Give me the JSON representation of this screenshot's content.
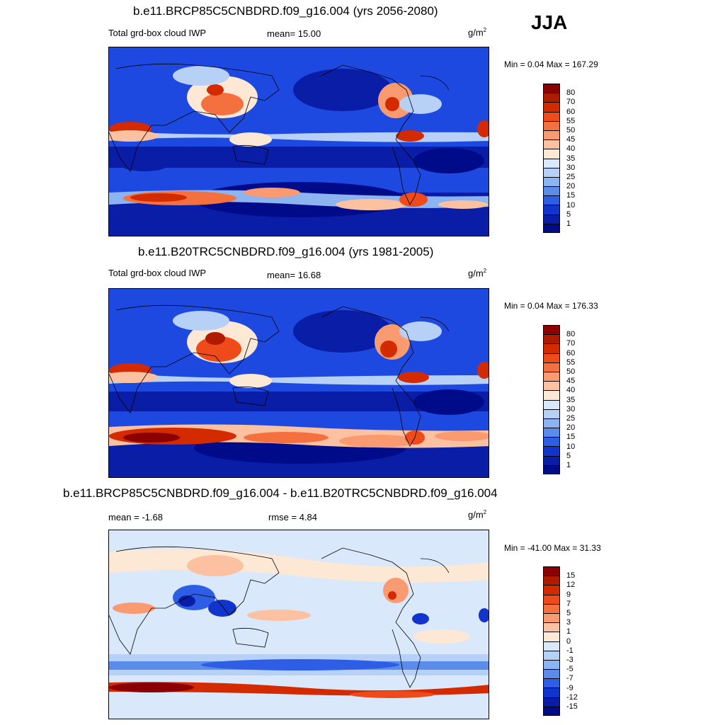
{
  "season": "JJA",
  "units": "g/m",
  "units_sup": "2",
  "panels": [
    {
      "title": "b.e11.BRCP85C5CNBDRD.f09_g16.004 (yrs 2056-2080)",
      "left_label": "Total grd-box cloud IWP",
      "mid_label": "mean=  15.00",
      "minmax": "Min =   0.04 Max = 167.29"
    },
    {
      "title": "b.e11.B20TRC5CNBDRD.f09_g16.004 (yrs 1981-2005)",
      "left_label": "Total grd-box cloud IWP",
      "mid_label": "mean=  16.68",
      "minmax": "Min =   0.04 Max = 176.33"
    },
    {
      "title": "b.e11.BRCP85C5CNBDRD.f09_g16.004 - b.e11.B20TRC5CNBDRD.f09_g16.004",
      "left_label": "mean =  -1.68",
      "mid_label": "rmse =   4.84",
      "minmax": "Min = -41.00 Max =  31.33"
    }
  ],
  "colorbar_abs": {
    "labels": [
      "80",
      "70",
      "60",
      "55",
      "50",
      "45",
      "40",
      "35",
      "30",
      "25",
      "20",
      "15",
      "10",
      "5",
      "1"
    ],
    "colors": [
      "#8b0000",
      "#b01a00",
      "#d42a00",
      "#ee4a1a",
      "#f5703f",
      "#fa9a70",
      "#fcc1a0",
      "#fde8d5",
      "#dae8fb",
      "#b6d0f6",
      "#8cb4f0",
      "#5b8cec",
      "#2e5ee6",
      "#1034cc",
      "#0a1da6",
      "#000b8a"
    ]
  },
  "colorbar_diff": {
    "labels": [
      "15",
      "12",
      "9",
      "7",
      "5",
      "3",
      "1",
      "0",
      "-1",
      "-3",
      "-5",
      "-7",
      "-9",
      "-12",
      "-15"
    ],
    "colors": [
      "#8b0000",
      "#b01a00",
      "#d42a00",
      "#ee4a1a",
      "#f5703f",
      "#fa9a70",
      "#fcc1a0",
      "#fde8d5",
      "#dae8fb",
      "#b6d0f6",
      "#8cb4f0",
      "#5b8cec",
      "#2e5ee6",
      "#1034cc",
      "#0a1da6",
      "#000b8a"
    ]
  }
}
